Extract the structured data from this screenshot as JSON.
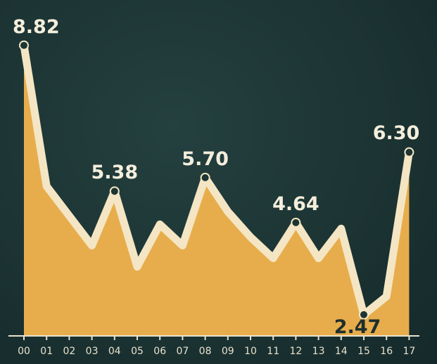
{
  "chart_data": {
    "type": "area",
    "title": "",
    "xlabel": "",
    "ylabel": "",
    "categories": [
      "00",
      "01",
      "02",
      "03",
      "04",
      "05",
      "06",
      "07",
      "08",
      "09",
      "10",
      "11",
      "12",
      "13",
      "14",
      "15",
      "16",
      "17"
    ],
    "values": [
      8.82,
      5.5,
      4.8,
      4.1,
      5.38,
      3.6,
      4.6,
      4.1,
      5.7,
      4.9,
      4.3,
      3.8,
      4.64,
      3.8,
      4.5,
      2.47,
      2.9,
      6.3
    ],
    "labeled_points": [
      {
        "index": 0,
        "text": "8.82"
      },
      {
        "index": 4,
        "text": "5.38"
      },
      {
        "index": 8,
        "text": "5.70"
      },
      {
        "index": 12,
        "text": "4.64"
      },
      {
        "index": 15,
        "text": "2.47"
      },
      {
        "index": 17,
        "text": "6.30"
      }
    ],
    "colors": {
      "fill": "#e7ad4c",
      "line": "#f4e6c4",
      "marker_fill": "#1c3433",
      "label_light": "#f4eedc",
      "label_dark": "#1e2f2d",
      "background": "#1c3433"
    }
  }
}
